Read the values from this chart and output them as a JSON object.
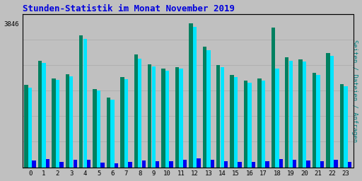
{
  "title": "Stunden-Statistik im Monat November 2019",
  "title_color": "#0000dd",
  "background_color": "#c0c0c0",
  "plot_bg_color": "#c0c0c0",
  "ylabel_right": "Seiten / Dateien / Anfragen",
  "ylabel_right_color": "#008080",
  "hours": [
    0,
    1,
    2,
    3,
    4,
    5,
    6,
    7,
    8,
    9,
    10,
    11,
    12,
    13,
    14,
    15,
    16,
    17,
    18,
    19,
    20,
    21,
    22,
    23
  ],
  "ymax": 4100,
  "ytick_label": "3846",
  "ytick_value": 3846,
  "series1_color": "#008060",
  "series2_color": "#00e5ff",
  "series3_color": "#0000ee",
  "series1": [
    2200,
    2850,
    2380,
    2480,
    3520,
    2100,
    1860,
    2420,
    3020,
    2750,
    2640,
    2680,
    3846,
    3230,
    2730,
    2460,
    2320,
    2370,
    3730,
    2950,
    2880,
    2530,
    3050,
    2230
  ],
  "series2": [
    2120,
    2790,
    2330,
    2430,
    3430,
    2060,
    1810,
    2360,
    2910,
    2690,
    2580,
    2630,
    3760,
    3130,
    2670,
    2410,
    2270,
    2320,
    2640,
    2840,
    2830,
    2470,
    2980,
    2170
  ],
  "series3": [
    180,
    220,
    150,
    200,
    200,
    130,
    100,
    150,
    185,
    165,
    170,
    195,
    230,
    200,
    160,
    150,
    145,
    155,
    220,
    200,
    175,
    170,
    195,
    145
  ]
}
